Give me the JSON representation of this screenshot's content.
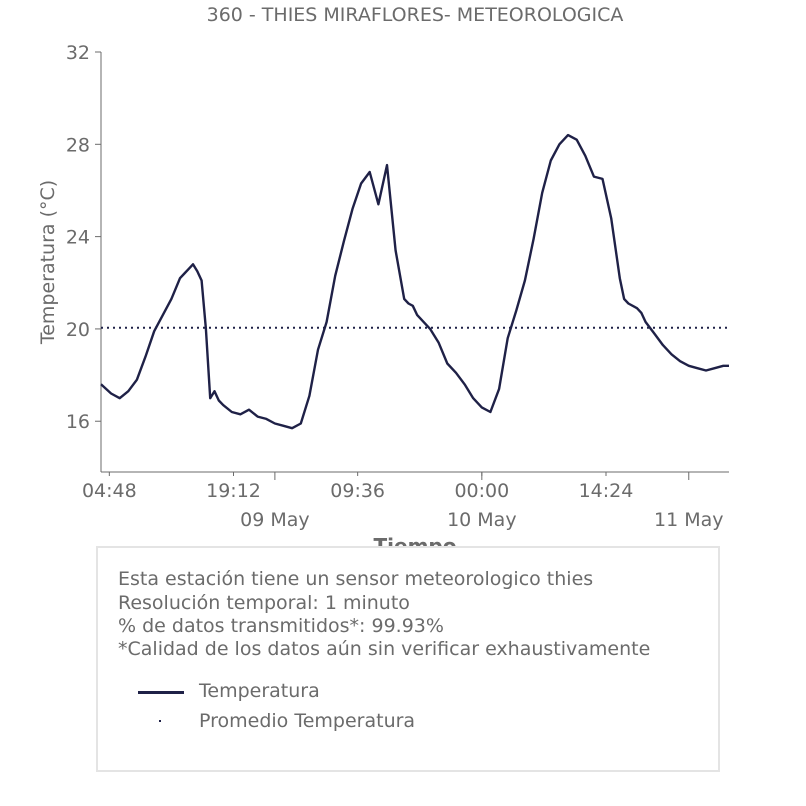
{
  "chart_data": {
    "type": "line",
    "title": "360 - THIES MIRAFLORES- METEOROLOGICA",
    "xlabel": "Tiempo",
    "ylabel": "Temperatura (°C)",
    "xlim": [
      "2025-05-08T03:50",
      "2025-05-11T04:40"
    ],
    "ylim": [
      13.8,
      32
    ],
    "yticks": [
      16,
      20,
      24,
      28,
      32
    ],
    "xticks_minor": [
      {
        "t": "2025-05-08T04:48",
        "label": "04:48"
      },
      {
        "t": "2025-05-08T19:12",
        "label": "19:12"
      },
      {
        "t": "2025-05-09T09:36",
        "label": "09:36"
      },
      {
        "t": "2025-05-10T00:00",
        "label": "00:00"
      },
      {
        "t": "2025-05-10T14:24",
        "label": "14:24"
      }
    ],
    "xticks_major": [
      {
        "t": "2025-05-09T00:00",
        "label": "09 May"
      },
      {
        "t": "2025-05-10T00:00",
        "label": "10 May"
      },
      {
        "t": "2025-05-11T00:00",
        "label": "11 May"
      }
    ],
    "grid": false,
    "series": [
      {
        "name": "Temperatura",
        "color": "#1f2147",
        "style": "solid",
        "x": [
          "2025-05-08T03:50",
          "2025-05-08T05:00",
          "2025-05-08T06:00",
          "2025-05-08T07:00",
          "2025-05-08T08:00",
          "2025-05-08T09:00",
          "2025-05-08T10:00",
          "2025-05-08T11:00",
          "2025-05-08T12:00",
          "2025-05-08T13:00",
          "2025-05-08T13:30",
          "2025-05-08T14:00",
          "2025-05-08T14:30",
          "2025-05-08T15:00",
          "2025-05-08T15:30",
          "2025-05-08T16:00",
          "2025-05-08T16:30",
          "2025-05-08T17:00",
          "2025-05-08T17:30",
          "2025-05-08T18:00",
          "2025-05-08T19:00",
          "2025-05-08T20:00",
          "2025-05-08T21:00",
          "2025-05-08T22:00",
          "2025-05-08T23:00",
          "2025-05-09T00:00",
          "2025-05-09T01:00",
          "2025-05-09T02:00",
          "2025-05-09T03:00",
          "2025-05-09T04:00",
          "2025-05-09T05:00",
          "2025-05-09T06:00",
          "2025-05-09T07:00",
          "2025-05-09T08:00",
          "2025-05-09T09:00",
          "2025-05-09T10:00",
          "2025-05-09T11:00",
          "2025-05-09T12:00",
          "2025-05-09T13:00",
          "2025-05-09T14:00",
          "2025-05-09T15:00",
          "2025-05-09T15:30",
          "2025-05-09T16:00",
          "2025-05-09T16:30",
          "2025-05-09T17:00",
          "2025-05-09T17:30",
          "2025-05-09T18:00",
          "2025-05-09T19:00",
          "2025-05-09T20:00",
          "2025-05-09T21:00",
          "2025-05-09T22:00",
          "2025-05-09T23:00",
          "2025-05-10T00:00",
          "2025-05-10T01:00",
          "2025-05-10T02:00",
          "2025-05-10T03:00",
          "2025-05-10T04:00",
          "2025-05-10T05:00",
          "2025-05-10T06:00",
          "2025-05-10T07:00",
          "2025-05-10T08:00",
          "2025-05-10T09:00",
          "2025-05-10T10:00",
          "2025-05-10T11:00",
          "2025-05-10T12:00",
          "2025-05-10T13:00",
          "2025-05-10T14:00",
          "2025-05-10T15:00",
          "2025-05-10T16:00",
          "2025-05-10T16:30",
          "2025-05-10T17:00",
          "2025-05-10T18:00",
          "2025-05-10T18:30",
          "2025-05-10T19:00",
          "2025-05-10T20:00",
          "2025-05-10T21:00",
          "2025-05-10T22:00",
          "2025-05-10T23:00",
          "2025-05-11T00:00",
          "2025-05-11T01:00",
          "2025-05-11T02:00",
          "2025-05-11T03:00",
          "2025-05-11T04:00",
          "2025-05-11T04:40"
        ],
        "y": [
          17.6,
          17.2,
          17.0,
          17.3,
          17.8,
          18.8,
          19.9,
          20.6,
          21.3,
          22.2,
          22.4,
          22.6,
          22.8,
          22.5,
          22.1,
          20.0,
          17.0,
          17.3,
          16.9,
          16.7,
          16.4,
          16.3,
          16.5,
          16.2,
          16.1,
          15.9,
          15.8,
          15.7,
          15.9,
          17.1,
          19.1,
          20.3,
          22.3,
          23.8,
          25.2,
          26.3,
          26.8,
          25.4,
          27.1,
          23.4,
          21.3,
          21.1,
          21.0,
          20.6,
          20.4,
          20.2,
          20.0,
          19.4,
          18.5,
          18.1,
          17.6,
          17.0,
          16.6,
          16.4,
          17.4,
          19.6,
          20.8,
          22.1,
          23.9,
          25.9,
          27.3,
          28.0,
          28.4,
          28.2,
          27.5,
          26.6,
          26.5,
          24.8,
          22.2,
          21.3,
          21.1,
          20.9,
          20.7,
          20.3,
          19.8,
          19.3,
          18.9,
          18.6,
          18.4,
          18.3,
          18.2,
          18.3,
          18.4,
          18.4
        ]
      },
      {
        "name": "Promedio Temperatura",
        "color": "#1f2147",
        "style": "dotted",
        "value": 20.05
      }
    ],
    "legend": {
      "placement": "below"
    }
  },
  "info": {
    "lines": [
      "Esta estación tiene un sensor meteorologico thies",
      "Resolución temporal: 1 minuto",
      "% de datos transmitidos*: 99.93%",
      "*Calidad de los datos aún sin verificar exhaustivamente"
    ],
    "legend_items": [
      "Temperatura",
      "Promedio Temperatura"
    ]
  }
}
